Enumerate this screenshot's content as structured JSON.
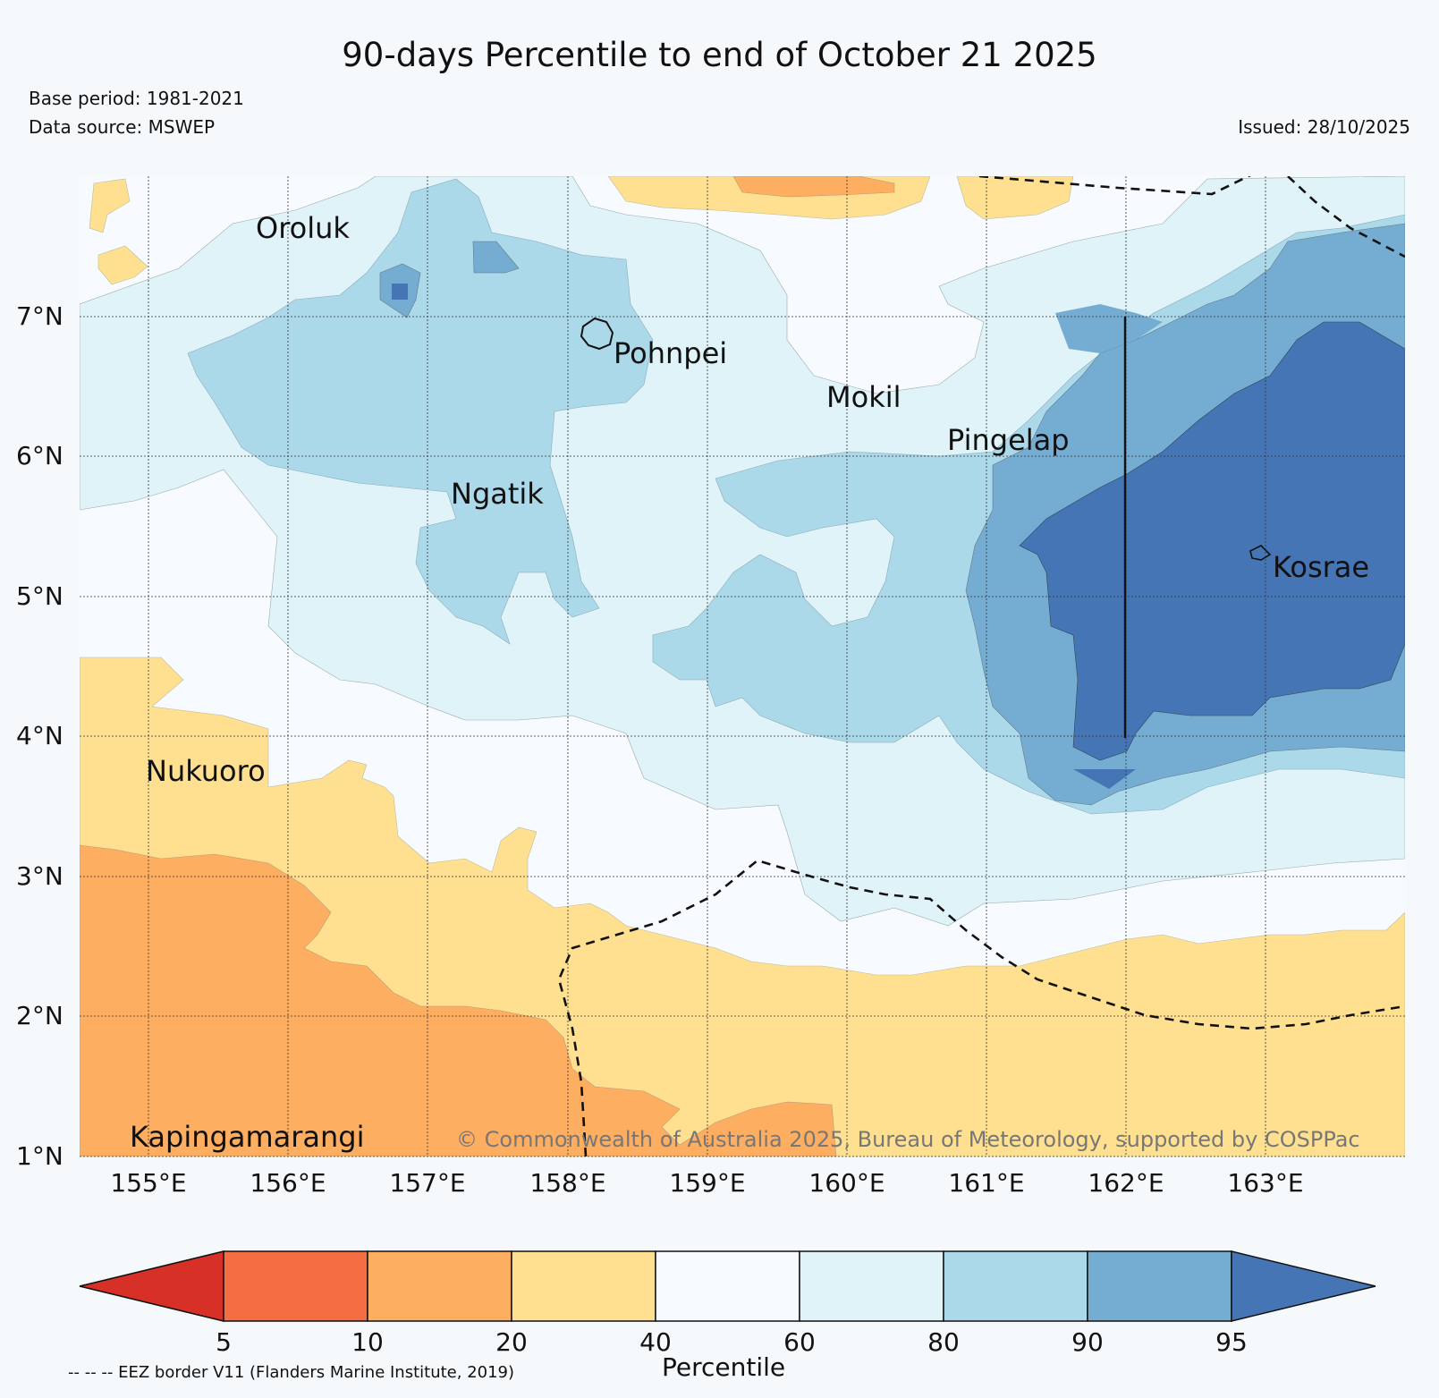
{
  "header": {
    "title": "90-days Percentile to end of October 21 2025",
    "base_period": "Base period: 1981-2021",
    "data_source": "Data source: MSWEP",
    "issued": "Issued: 28/10/2025"
  },
  "map": {
    "lon_range": [
      154.5,
      164
    ],
    "lat_range": [
      1,
      8
    ],
    "lat_ticks": [
      "1°N",
      "2°N",
      "3°N",
      "4°N",
      "5°N",
      "6°N",
      "7°N"
    ],
    "lon_ticks": [
      "155°E",
      "156°E",
      "157°E",
      "158°E",
      "159°E",
      "160°E",
      "161°E",
      "162°E",
      "163°E"
    ],
    "places": [
      "Oroluk",
      "Pohnpei",
      "Mokil",
      "Pingelap",
      "Ngatik",
      "Kosrae",
      "Nukuoro",
      "Kapingamarangi"
    ],
    "copyright": "© Commonwealth of Australia 2025, Bureau of Meteorology, supported by COSPPac"
  },
  "colorbar": {
    "label": "Percentile",
    "ticks": [
      "5",
      "10",
      "20",
      "40",
      "60",
      "80",
      "90",
      "95"
    ],
    "colors": [
      "#d73027",
      "#f46d43",
      "#fdae61",
      "#fee090",
      "#f7fbff",
      "#e0f3f8",
      "#abd9e9",
      "#74add1",
      "#4575b4"
    ]
  },
  "legend_note": "-- -- -- EEZ border V11 (Flanders Marine Institute, 2019)"
}
